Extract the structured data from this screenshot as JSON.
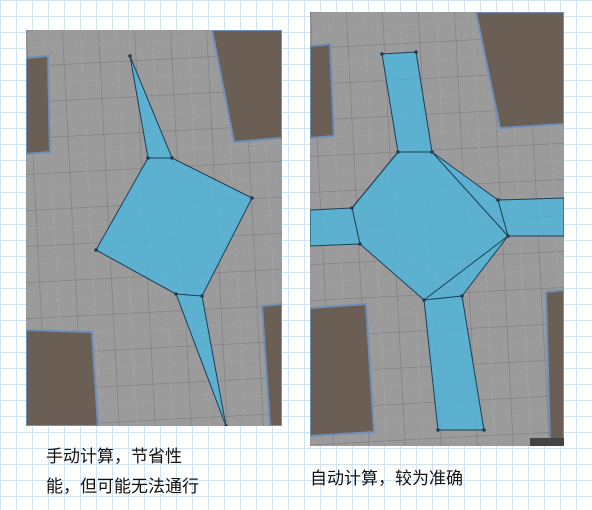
{
  "captions": {
    "left_line1": "手动计算，节省性",
    "left_line2": "能，但可能无法通行",
    "right": "自动计算，较为准确"
  },
  "colors": {
    "floor": "#9b9b9b",
    "floor_grid": "#7c7c7c",
    "obstacle": "#6a5e55",
    "obstacle_edge": "#6f8fb8",
    "navmesh_fill": "#4eb6dc",
    "navmesh_stroke": "#1d3e55",
    "page_grid": "#cfe4f3"
  },
  "icons": [
    "navmesh-polygon",
    "obstacle-block"
  ]
}
